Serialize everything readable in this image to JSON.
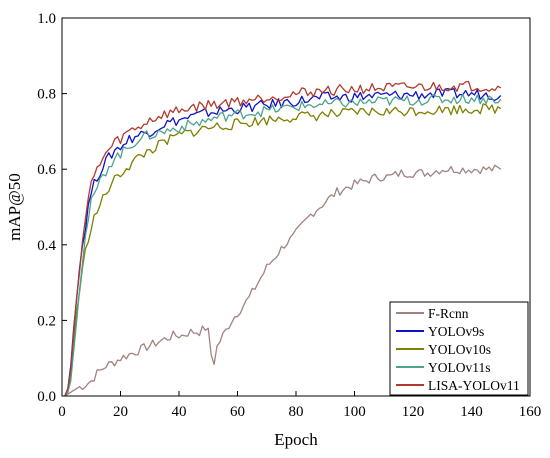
{
  "chart_data": {
    "type": "line",
    "xlabel": "Epoch",
    "ylabel": "mAP@50",
    "xlim": [
      0,
      160
    ],
    "ylim": [
      0.0,
      1.0
    ],
    "x_ticks": [
      "0",
      "20",
      "40",
      "60",
      "80",
      "100",
      "120",
      "140",
      "160"
    ],
    "y_ticks": [
      "0.0",
      "0.2",
      "0.4",
      "0.6",
      "0.8",
      "1.0"
    ],
    "grid": false,
    "legend_position": "bottom-right",
    "series": [
      {
        "name": "F-Rcnn",
        "color": "#a08280",
        "points": [
          [
            1,
            0.0
          ],
          [
            3,
            0.01
          ],
          [
            5,
            0.02
          ],
          [
            8,
            0.03
          ],
          [
            10,
            0.04
          ],
          [
            12,
            0.06
          ],
          [
            15,
            0.08
          ],
          [
            18,
            0.09
          ],
          [
            20,
            0.1
          ],
          [
            23,
            0.11
          ],
          [
            26,
            0.12
          ],
          [
            29,
            0.13
          ],
          [
            32,
            0.14
          ],
          [
            35,
            0.15
          ],
          [
            38,
            0.16
          ],
          [
            41,
            0.16
          ],
          [
            44,
            0.17
          ],
          [
            47,
            0.17
          ],
          [
            49,
            0.18
          ],
          [
            50,
            0.17
          ],
          [
            51,
            0.11
          ],
          [
            52,
            0.09
          ],
          [
            53,
            0.13
          ],
          [
            55,
            0.16
          ],
          [
            58,
            0.2
          ],
          [
            61,
            0.23
          ],
          [
            64,
            0.26
          ],
          [
            67,
            0.3
          ],
          [
            70,
            0.34
          ],
          [
            73,
            0.37
          ],
          [
            76,
            0.4
          ],
          [
            79,
            0.42
          ],
          [
            82,
            0.45
          ],
          [
            85,
            0.48
          ],
          [
            88,
            0.5
          ],
          [
            91,
            0.52
          ],
          [
            94,
            0.54
          ],
          [
            97,
            0.55
          ],
          [
            100,
            0.56
          ],
          [
            104,
            0.57
          ],
          [
            108,
            0.58
          ],
          [
            112,
            0.58
          ],
          [
            116,
            0.59
          ],
          [
            120,
            0.59
          ],
          [
            125,
            0.59
          ],
          [
            130,
            0.6
          ],
          [
            135,
            0.6
          ],
          [
            140,
            0.6
          ],
          [
            145,
            0.6
          ],
          [
            150,
            0.6
          ]
        ]
      },
      {
        "name": "YOLOv9s",
        "color": "#1010c8",
        "points": [
          [
            1,
            0.0
          ],
          [
            2,
            0.02
          ],
          [
            3,
            0.08
          ],
          [
            4,
            0.18
          ],
          [
            5,
            0.27
          ],
          [
            6,
            0.34
          ],
          [
            7,
            0.4
          ],
          [
            8,
            0.45
          ],
          [
            9,
            0.5
          ],
          [
            10,
            0.54
          ],
          [
            12,
            0.58
          ],
          [
            14,
            0.61
          ],
          [
            16,
            0.63
          ],
          [
            18,
            0.65
          ],
          [
            20,
            0.66
          ],
          [
            23,
            0.68
          ],
          [
            26,
            0.69
          ],
          [
            30,
            0.7
          ],
          [
            35,
            0.72
          ],
          [
            40,
            0.73
          ],
          [
            45,
            0.74
          ],
          [
            50,
            0.75
          ],
          [
            55,
            0.755
          ],
          [
            60,
            0.76
          ],
          [
            65,
            0.765
          ],
          [
            70,
            0.77
          ],
          [
            75,
            0.775
          ],
          [
            80,
            0.78
          ],
          [
            85,
            0.785
          ],
          [
            90,
            0.79
          ],
          [
            95,
            0.79
          ],
          [
            100,
            0.792
          ],
          [
            110,
            0.795
          ],
          [
            120,
            0.797
          ],
          [
            130,
            0.799
          ],
          [
            140,
            0.8
          ],
          [
            150,
            0.795
          ]
        ]
      },
      {
        "name": "YOLOv10s",
        "color": "#7f7f00",
        "points": [
          [
            1,
            0.0
          ],
          [
            2,
            0.01
          ],
          [
            3,
            0.05
          ],
          [
            4,
            0.14
          ],
          [
            5,
            0.22
          ],
          [
            6,
            0.28
          ],
          [
            7,
            0.33
          ],
          [
            8,
            0.38
          ],
          [
            9,
            0.42
          ],
          [
            10,
            0.45
          ],
          [
            12,
            0.49
          ],
          [
            14,
            0.52
          ],
          [
            16,
            0.55
          ],
          [
            18,
            0.57
          ],
          [
            20,
            0.59
          ],
          [
            23,
            0.61
          ],
          [
            26,
            0.63
          ],
          [
            30,
            0.65
          ],
          [
            35,
            0.67
          ],
          [
            40,
            0.69
          ],
          [
            45,
            0.7
          ],
          [
            50,
            0.71
          ],
          [
            55,
            0.715
          ],
          [
            60,
            0.72
          ],
          [
            65,
            0.725
          ],
          [
            70,
            0.73
          ],
          [
            75,
            0.735
          ],
          [
            80,
            0.74
          ],
          [
            85,
            0.74
          ],
          [
            90,
            0.745
          ],
          [
            95,
            0.745
          ],
          [
            100,
            0.75
          ],
          [
            110,
            0.752
          ],
          [
            120,
            0.755
          ],
          [
            130,
            0.757
          ],
          [
            140,
            0.76
          ],
          [
            150,
            0.76
          ]
        ]
      },
      {
        "name": "YOLOv11s",
        "color": "#4ca48c",
        "points": [
          [
            1,
            0.0
          ],
          [
            2,
            0.01
          ],
          [
            3,
            0.04
          ],
          [
            4,
            0.12
          ],
          [
            5,
            0.21
          ],
          [
            6,
            0.29
          ],
          [
            7,
            0.36
          ],
          [
            8,
            0.42
          ],
          [
            9,
            0.47
          ],
          [
            10,
            0.51
          ],
          [
            12,
            0.55
          ],
          [
            14,
            0.58
          ],
          [
            16,
            0.61
          ],
          [
            18,
            0.63
          ],
          [
            20,
            0.64
          ],
          [
            23,
            0.66
          ],
          [
            26,
            0.68
          ],
          [
            30,
            0.69
          ],
          [
            35,
            0.7
          ],
          [
            40,
            0.71
          ],
          [
            45,
            0.72
          ],
          [
            50,
            0.73
          ],
          [
            55,
            0.74
          ],
          [
            60,
            0.745
          ],
          [
            65,
            0.75
          ],
          [
            70,
            0.755
          ],
          [
            75,
            0.76
          ],
          [
            80,
            0.765
          ],
          [
            85,
            0.77
          ],
          [
            90,
            0.77
          ],
          [
            95,
            0.775
          ],
          [
            100,
            0.775
          ],
          [
            110,
            0.78
          ],
          [
            120,
            0.782
          ],
          [
            130,
            0.785
          ],
          [
            140,
            0.787
          ],
          [
            150,
            0.785
          ]
        ]
      },
      {
        "name": "LISA-YOLOv11",
        "color": "#b03a2e",
        "points": [
          [
            1,
            0.0
          ],
          [
            2,
            0.02
          ],
          [
            3,
            0.07
          ],
          [
            4,
            0.17
          ],
          [
            5,
            0.26
          ],
          [
            6,
            0.34
          ],
          [
            7,
            0.41
          ],
          [
            8,
            0.47
          ],
          [
            9,
            0.52
          ],
          [
            10,
            0.56
          ],
          [
            12,
            0.6
          ],
          [
            14,
            0.63
          ],
          [
            16,
            0.65
          ],
          [
            18,
            0.67
          ],
          [
            20,
            0.68
          ],
          [
            23,
            0.7
          ],
          [
            26,
            0.71
          ],
          [
            30,
            0.73
          ],
          [
            35,
            0.745
          ],
          [
            40,
            0.755
          ],
          [
            45,
            0.765
          ],
          [
            50,
            0.77
          ],
          [
            55,
            0.775
          ],
          [
            60,
            0.78
          ],
          [
            65,
            0.785
          ],
          [
            70,
            0.79
          ],
          [
            75,
            0.795
          ],
          [
            80,
            0.8
          ],
          [
            85,
            0.805
          ],
          [
            90,
            0.808
          ],
          [
            95,
            0.81
          ],
          [
            100,
            0.812
          ],
          [
            110,
            0.815
          ],
          [
            120,
            0.817
          ],
          [
            130,
            0.819
          ],
          [
            140,
            0.82
          ],
          [
            150,
            0.815
          ]
        ]
      }
    ]
  }
}
